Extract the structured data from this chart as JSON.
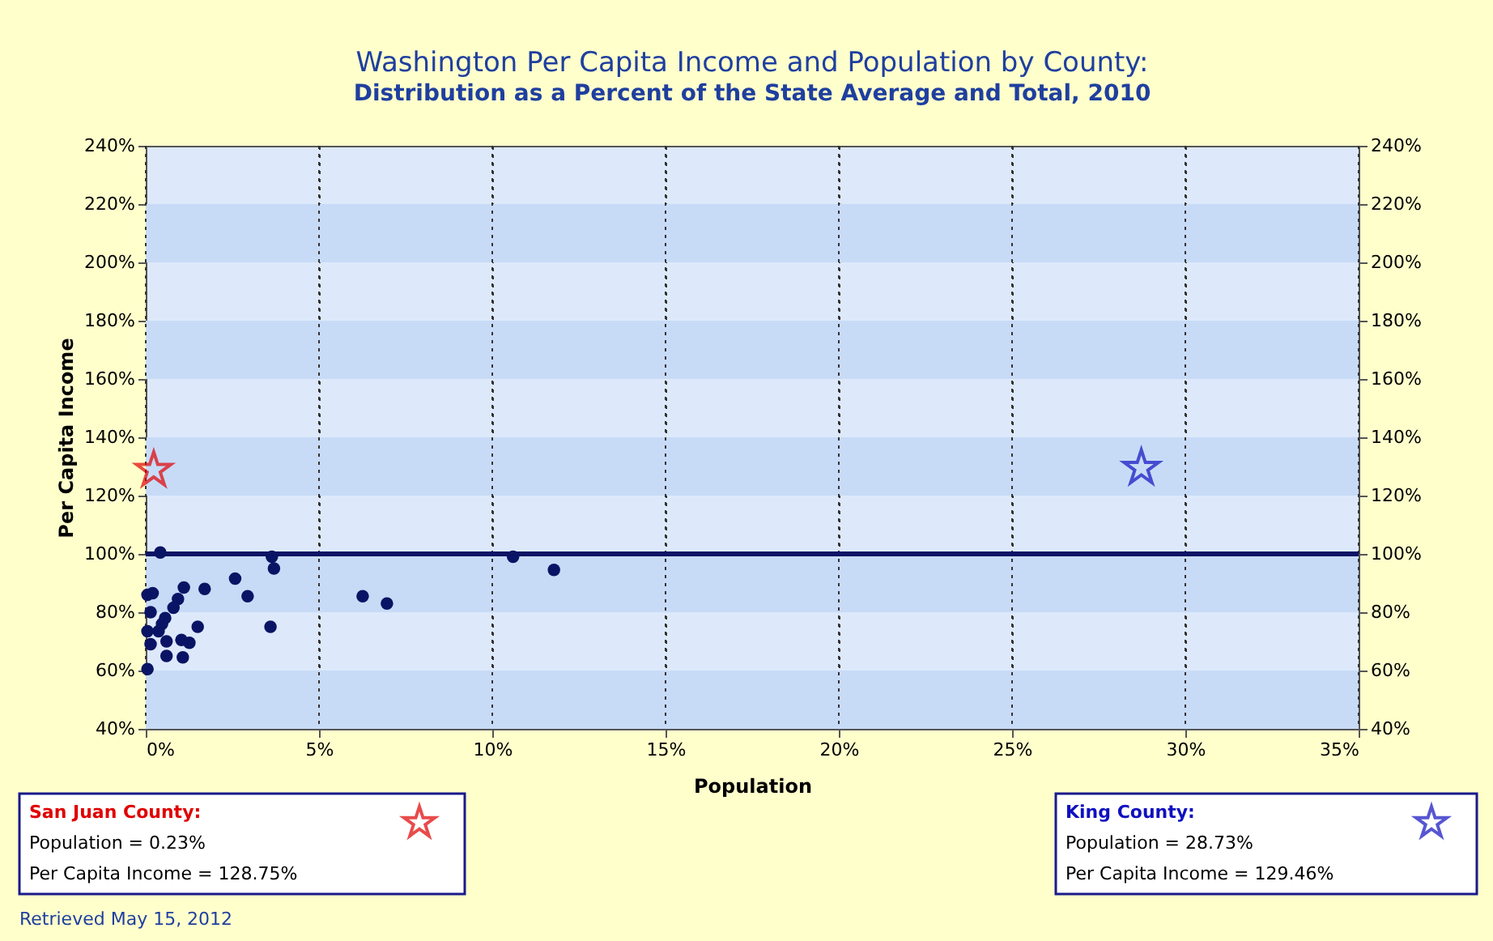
{
  "chart_data": {
    "type": "scatter",
    "title": "Washington Per Capita Income and Population by County:",
    "subtitle": "Distribution as a Percent of the State Average and Total, 2010",
    "xlabel": "Population",
    "ylabel": "Per Capita Income",
    "xlim": [
      0,
      35
    ],
    "xticks": [
      {
        "value": 0,
        "label": "0%"
      },
      {
        "value": 5,
        "label": "5%"
      },
      {
        "value": 10,
        "label": "10%"
      },
      {
        "value": 15,
        "label": "15%"
      },
      {
        "value": 20,
        "label": "20%"
      },
      {
        "value": 25,
        "label": "25%"
      },
      {
        "value": 30,
        "label": "30%"
      },
      {
        "value": 35,
        "label": "35%"
      }
    ],
    "ylim": [
      40,
      240
    ],
    "yticks": [
      {
        "value": 40,
        "label": "40%"
      },
      {
        "value": 60,
        "label": "60%"
      },
      {
        "value": 80,
        "label": "80%"
      },
      {
        "value": 100,
        "label": "100%"
      },
      {
        "value": 120,
        "label": "120%"
      },
      {
        "value": 140,
        "label": "140%"
      },
      {
        "value": 160,
        "label": "160%"
      },
      {
        "value": 180,
        "label": "180%"
      },
      {
        "value": 200,
        "label": "200%"
      },
      {
        "value": 220,
        "label": "220%"
      },
      {
        "value": 240,
        "label": "240%"
      }
    ],
    "y2lim": [
      40,
      240
    ],
    "y2ticks": [
      {
        "value": 40,
        "label": "40%"
      },
      {
        "value": 60,
        "label": "60%"
      },
      {
        "value": 80,
        "label": "80%"
      },
      {
        "value": 100,
        "label": "100%"
      },
      {
        "value": 120,
        "label": "120%"
      },
      {
        "value": 140,
        "label": "140%"
      },
      {
        "value": 160,
        "label": "160%"
      },
      {
        "value": 180,
        "label": "180%"
      },
      {
        "value": 200,
        "label": "200%"
      },
      {
        "value": 220,
        "label": "220%"
      },
      {
        "value": 240,
        "label": "240%"
      }
    ],
    "grid": true,
    "legend": "bottom",
    "series": [
      {
        "color": "#0a1464",
        "marker": "circle",
        "x": [
          0.42,
          3.64,
          3.7,
          2.58,
          2.94,
          1.7,
          1.1,
          3.6,
          1.5,
          0.05,
          0.2,
          0.93,
          0.8,
          0.14,
          0.56,
          0.05,
          0.37,
          0.14,
          0.6,
          1.03,
          1.26,
          0.6,
          1.07,
          0.05,
          0.47,
          6.26,
          6.96,
          10.6,
          11.78
        ],
        "values": [
          100.5,
          99,
          95,
          91.5,
          85.5,
          88,
          88.5,
          75,
          75,
          86,
          86.5,
          84.5,
          81.5,
          80,
          78,
          73.5,
          73.5,
          69,
          70,
          70.5,
          69.5,
          65,
          64.5,
          60.5,
          76,
          85.5,
          83,
          99,
          94.5
        ]
      },
      {
        "name": "San Juan County:",
        "color": "#e00000",
        "marker": "star",
        "x": [
          0.23
        ],
        "values": [
          128.75
        ]
      },
      {
        "name": "King County:",
        "color": "#1010c0",
        "marker": "star",
        "x": [
          28.73
        ],
        "values": [
          129.46
        ]
      }
    ],
    "bands": [
      {
        "axis": "y",
        "from": 40,
        "to": 60,
        "color": "#c7dbf7"
      },
      {
        "axis": "y",
        "from": 80,
        "to": 100,
        "color": "#c7dbf7"
      },
      {
        "axis": "y",
        "from": 120,
        "to": 140,
        "color": "#c7dbf7"
      },
      {
        "axis": "y",
        "from": 160,
        "to": 180,
        "color": "#c7dbf7"
      },
      {
        "axis": "y",
        "from": 200,
        "to": 220,
        "color": "#c7dbf7"
      }
    ],
    "ref_lines": [
      {
        "axis": "y",
        "value": 100,
        "color": "#0a1464"
      }
    ],
    "annotations": [
      "Population = 0.23%",
      "Per Capita Income = 128.75%",
      "Population = 28.73%",
      "Per Capita Income = 129.46%",
      "Retrieved May 15, 2012"
    ]
  }
}
